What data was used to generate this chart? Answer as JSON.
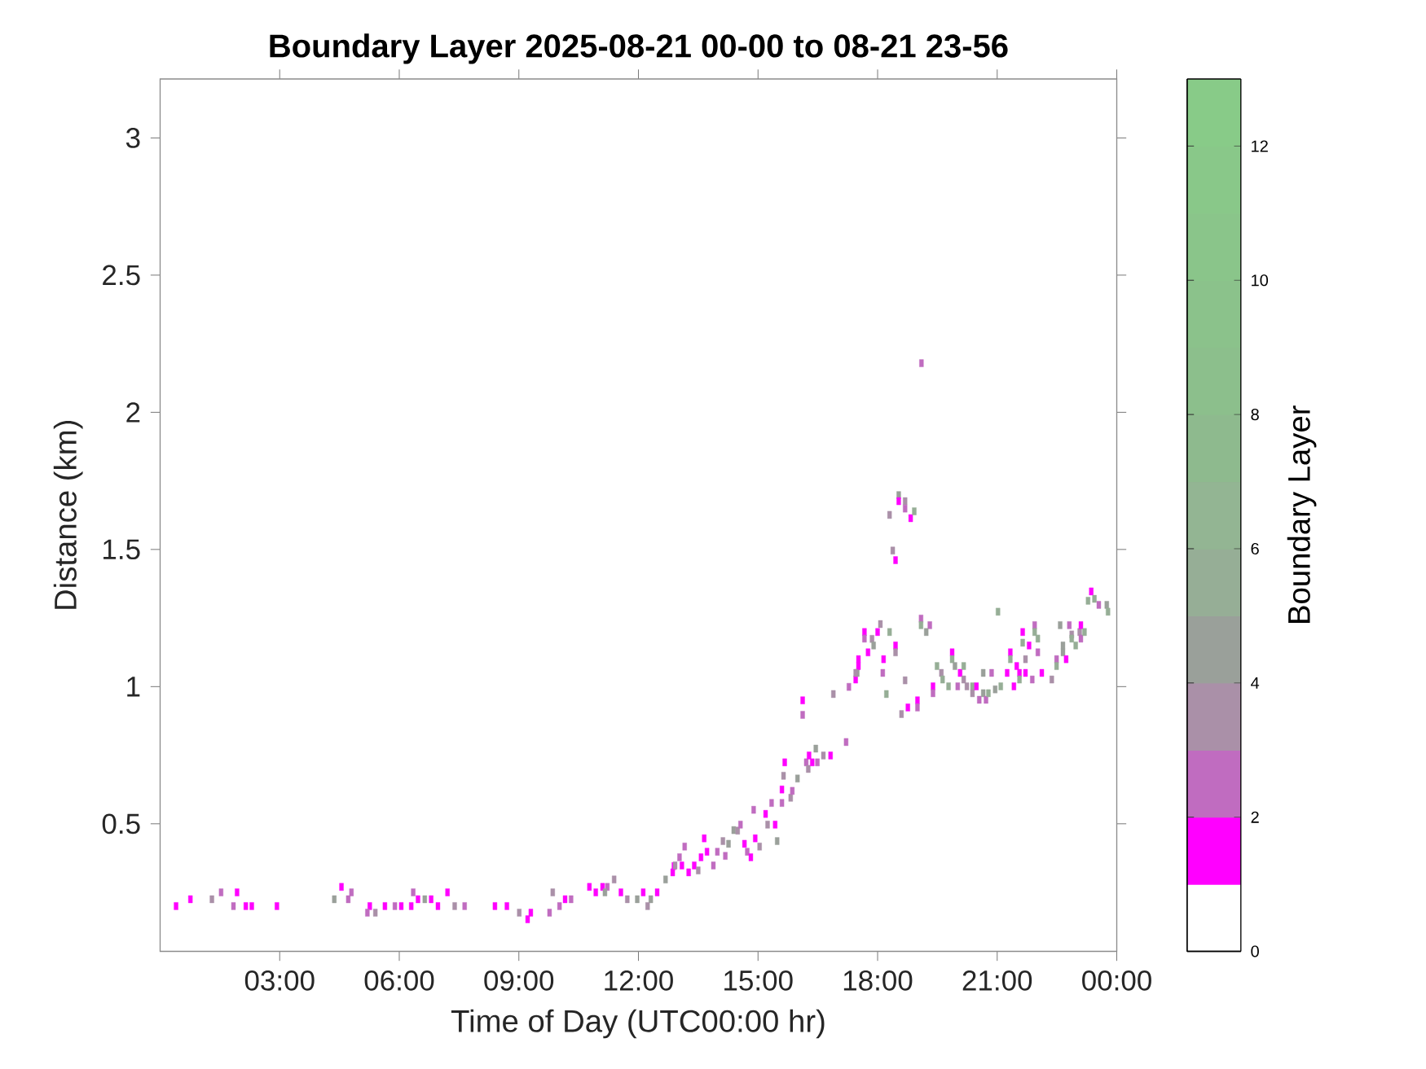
{
  "chart_data": {
    "type": "scatter",
    "title": "Boundary Layer 2025-08-21 00-00 to 08-21 23-56",
    "xlabel": "Time of Day (UTC00:00 hr)",
    "ylabel": "Distance (km)",
    "clabel": "Boundary Layer",
    "xlim": [
      0,
      24
    ],
    "ylim": [
      0.035,
      3.215
    ],
    "xticks": [
      {
        "value": 3,
        "label": "03:00"
      },
      {
        "value": 6,
        "label": "06:00"
      },
      {
        "value": 9,
        "label": "09:00"
      },
      {
        "value": 12,
        "label": "12:00"
      },
      {
        "value": 15,
        "label": "15:00"
      },
      {
        "value": 18,
        "label": "18:00"
      },
      {
        "value": 21,
        "label": "21:00"
      },
      {
        "value": 24,
        "label": "00:00"
      }
    ],
    "yticks": [
      0.5,
      1,
      1.5,
      2,
      2.5,
      3
    ],
    "clim": [
      0,
      13
    ],
    "cticks": [
      0,
      2,
      4,
      6,
      8,
      10,
      12
    ],
    "marker": "square",
    "series": [
      {
        "x": [
          0.4,
          0.76,
          1.3,
          1.53,
          1.93,
          1.84,
          2.15,
          2.3,
          2.93,
          4.37,
          4.55,
          4.8,
          4.72,
          5.26,
          5.2,
          5.4,
          5.64,
          5.89,
          6.05,
          6.3,
          6.35,
          6.47,
          6.64,
          6.8,
          6.97,
          7.21,
          7.39,
          7.64,
          8.4,
          8.7,
          9.01,
          9.22,
          9.3,
          9.77,
          9.85,
          10.02,
          10.16,
          10.31,
          10.77,
          10.93,
          11.1,
          11.22,
          11.16,
          11.39,
          11.56,
          11.72,
          11.97,
          12.12,
          12.31,
          12.23,
          12.47,
          12.68,
          12.89,
          12.86,
          12.92,
          13.03,
          13.09,
          13.16,
          13.26,
          13.4,
          13.5,
          13.57,
          13.65,
          13.72,
          13.88,
          13.98,
          14.12,
          14.18,
          14.26,
          14.39,
          14.49,
          14.56,
          14.66,
          14.73,
          14.82,
          14.89,
          14.93,
          15.04,
          15.19,
          15.24,
          15.34,
          15.43,
          15.48,
          15.6,
          15.6,
          15.82,
          15.86,
          15.99,
          15.67,
          15.64,
          16.21,
          16.26,
          16.28,
          16.36,
          16.45,
          16.49,
          16.64,
          16.82,
          17.21,
          16.12,
          16.12,
          16.89,
          17.28,
          17.45,
          17.49,
          18.13,
          18.22,
          18.69,
          18.76,
          18.6,
          18.53,
          18.53,
          18.69,
          18.69,
          18.3,
          18.83,
          18.92,
          18.38,
          18.45,
          19.1,
          17.67,
          17.67,
          17.86,
          17.9,
          17.76,
          18.0,
          18.07,
          18.3,
          18.45,
          18.45,
          17.52,
          17.52,
          17.45,
          18.15,
          19.09,
          19.09,
          19.31,
          19.22,
          19.0,
          19.0,
          19.49,
          19.6,
          19.63,
          19.78,
          19.39,
          19.39,
          19.87,
          19.87,
          19.94,
          20.07,
          20.16,
          20.16,
          20.01,
          20.24,
          20.38,
          20.38,
          20.48,
          20.55,
          20.65,
          20.72,
          20.78,
          20.65,
          20.86,
          20.95,
          21.02,
          21.09,
          21.25,
          21.33,
          21.33,
          21.42,
          21.49,
          21.56,
          21.56,
          21.64,
          21.64,
          21.71,
          21.71,
          21.8,
          21.88,
          21.94,
          21.94,
          22.02,
          22.02,
          22.12,
          22.37,
          22.49,
          22.49,
          22.58,
          22.65,
          22.73,
          22.65,
          22.81,
          22.87,
          22.87,
          22.97,
          23.07,
          23.1,
          23.1,
          23.19,
          23.28,
          23.36,
          23.44,
          23.55,
          23.75,
          23.78
        ],
        "values": [
          0.2,
          0.225,
          0.225,
          0.25,
          0.25,
          0.2,
          0.2,
          0.2,
          0.2,
          0.225,
          0.27,
          0.25,
          0.225,
          0.2,
          0.176,
          0.176,
          0.2,
          0.2,
          0.2,
          0.2,
          0.25,
          0.225,
          0.225,
          0.225,
          0.2,
          0.25,
          0.2,
          0.2,
          0.2,
          0.2,
          0.176,
          0.152,
          0.176,
          0.176,
          0.25,
          0.2,
          0.225,
          0.225,
          0.27,
          0.25,
          0.27,
          0.27,
          0.25,
          0.297,
          0.25,
          0.225,
          0.225,
          0.25,
          0.225,
          0.2,
          0.25,
          0.297,
          0.346,
          0.323,
          0.348,
          0.378,
          0.348,
          0.417,
          0.323,
          0.348,
          0.33,
          0.378,
          0.447,
          0.398,
          0.348,
          0.398,
          0.437,
          0.383,
          0.427,
          0.477,
          0.475,
          0.497,
          0.427,
          0.398,
          0.378,
          0.551,
          0.447,
          0.417,
          0.536,
          0.497,
          0.576,
          0.497,
          0.437,
          0.625,
          0.576,
          0.595,
          0.62,
          0.665,
          0.724,
          0.675,
          0.724,
          0.7,
          0.749,
          0.724,
          0.774,
          0.724,
          0.749,
          0.749,
          0.798,
          0.95,
          0.897,
          0.973,
          0.999,
          1.026,
          1.05,
          1.05,
          0.973,
          1.023,
          0.924,
          0.9,
          1.698,
          1.676,
          1.676,
          1.649,
          1.626,
          1.614,
          1.639,
          1.496,
          1.461,
          2.179,
          1.199,
          1.175,
          1.174,
          1.15,
          1.125,
          1.199,
          1.228,
          1.199,
          1.15,
          1.125,
          1.1,
          1.075,
          1.05,
          1.1,
          1.248,
          1.224,
          1.224,
          1.199,
          0.95,
          0.924,
          1.075,
          1.05,
          1.026,
          1.001,
          1.001,
          0.976,
          1.125,
          1.1,
          1.075,
          1.05,
          1.075,
          1.026,
          1.001,
          1.001,
          1.001,
          0.976,
          1.001,
          0.952,
          0.976,
          0.952,
          0.976,
          1.05,
          1.05,
          0.99,
          1.273,
          1.001,
          1.05,
          1.125,
          1.1,
          1.001,
          1.075,
          1.05,
          1.026,
          1.199,
          1.16,
          1.05,
          1.1,
          1.15,
          1.026,
          1.224,
          1.199,
          1.175,
          1.125,
          1.05,
          1.026,
          1.1,
          1.075,
          1.224,
          1.125,
          1.1,
          1.15,
          1.224,
          1.19,
          1.175,
          1.15,
          1.199,
          1.224,
          1.175,
          1.199,
          1.313,
          1.347,
          1.32,
          1.298,
          1.298,
          1.273
        ],
        "cvalues": [
          1.5,
          1.5,
          3.5,
          2.5,
          1.5,
          2.5,
          1.5,
          1.5,
          1.5,
          4.5,
          1.5,
          2.5,
          2.5,
          1.5,
          2.5,
          3.5,
          1.5,
          2.5,
          1.5,
          1.5,
          2.5,
          1.5,
          4.5,
          1.5,
          1.5,
          1.5,
          3.5,
          2.5,
          1.5,
          1.5,
          3.5,
          1.5,
          1.5,
          2.5,
          3.5,
          2.5,
          1.5,
          2.5,
          1.5,
          1.5,
          1.5,
          2.5,
          4.5,
          3.5,
          1.5,
          3.5,
          4.5,
          1.5,
          4.5,
          3.5,
          1.5,
          4.5,
          1.5,
          1.5,
          3.5,
          2.5,
          1.5,
          2.5,
          1.5,
          1.5,
          3.5,
          1.5,
          1.5,
          1.5,
          2.5,
          2.5,
          3.5,
          2.5,
          4.5,
          4.5,
          3.5,
          2.5,
          1.5,
          2.5,
          1.5,
          2.5,
          1.5,
          3.5,
          1.5,
          3.5,
          2.5,
          1.5,
          4.5,
          1.5,
          2.5,
          3.5,
          2.5,
          4.5,
          1.5,
          3.5,
          2.5,
          3.5,
          1.5,
          1.5,
          4.5,
          2.5,
          3.5,
          1.5,
          2.5,
          1.5,
          2.5,
          3.5,
          2.5,
          1.5,
          4.5,
          2.5,
          5.5,
          3.5,
          1.5,
          3.5,
          4.5,
          1.5,
          3.5,
          2.5,
          3.5,
          1.5,
          5.5,
          3.5,
          1.5,
          2.5,
          1.5,
          2.5,
          3.5,
          4.5,
          1.5,
          1.5,
          3.5,
          5.5,
          1.5,
          3.5,
          1.5,
          1.5,
          3.5,
          1.5,
          2.5,
          5.5,
          2.5,
          4.5,
          1.5,
          2.5,
          5.5,
          3.5,
          5.5,
          5.5,
          1.5,
          2.5,
          1.5,
          5.5,
          4.5,
          1.5,
          5.5,
          3.5,
          2.5,
          3.5,
          5.5,
          3.5,
          1.5,
          2.5,
          4.5,
          2.5,
          5.5,
          4.5,
          2.5,
          4.5,
          5.5,
          5.5,
          1.5,
          1.5,
          5.5,
          1.5,
          1.5,
          1.5,
          5.5,
          1.5,
          5.5,
          1.5,
          3.5,
          1.5,
          2.5,
          2.5,
          5.5,
          5.5,
          2.5,
          1.5,
          3.5,
          2.5,
          5.5,
          4.5,
          4.5,
          1.5,
          4.5,
          2.5,
          3.5,
          5.5,
          5.5,
          3.5,
          1.5,
          2.5,
          5.5,
          5.5,
          1.5,
          5.5,
          2.5,
          4.5,
          5.5
        ]
      }
    ]
  }
}
